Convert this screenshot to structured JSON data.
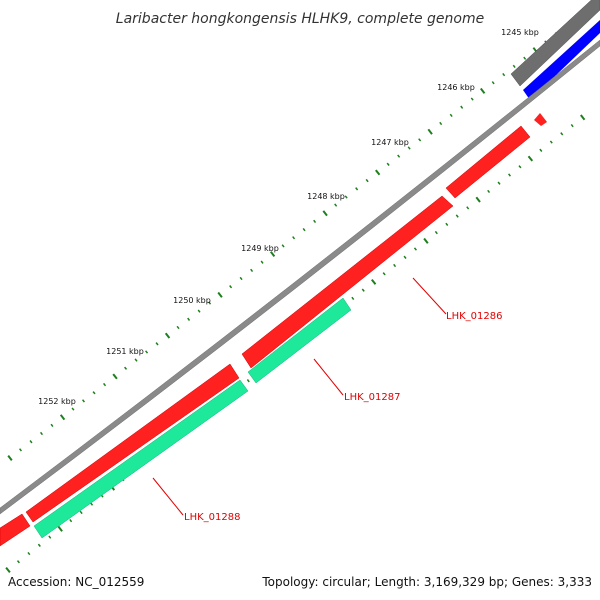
{
  "title": "Laribacter hongkongensis HLHK9, complete genome",
  "footer": {
    "accession": "Accession: NC_012559",
    "topology": "Topology: circular; Length: 3,169,329 bp; Genes: 3,333"
  },
  "colors": {
    "backbone": "#8a8a8a",
    "gc_track": "#6e6e6e",
    "blue_track": "#0000ff",
    "cds": "#ff0000",
    "rna": "#1ee89a",
    "tick_dots": "#1e7f1e",
    "label": "#e30000"
  },
  "kbp_ticks": [
    {
      "label": "1245 kbp",
      "kbp": 1245
    },
    {
      "label": "1246 kbp",
      "kbp": 1246
    },
    {
      "label": "1247 kbp",
      "kbp": 1247
    },
    {
      "label": "1248 kbp",
      "kbp": 1248
    },
    {
      "label": "1249 kbp",
      "kbp": 1249
    },
    {
      "label": "1250 kbp",
      "kbp": 1250
    },
    {
      "label": "1251 kbp",
      "kbp": 1251
    },
    {
      "label": "1252 kbp",
      "kbp": 1252
    }
  ],
  "gene_labels": [
    {
      "name": "LHK_01286"
    },
    {
      "name": "LHK_01287"
    },
    {
      "name": "LHK_01288"
    }
  ]
}
